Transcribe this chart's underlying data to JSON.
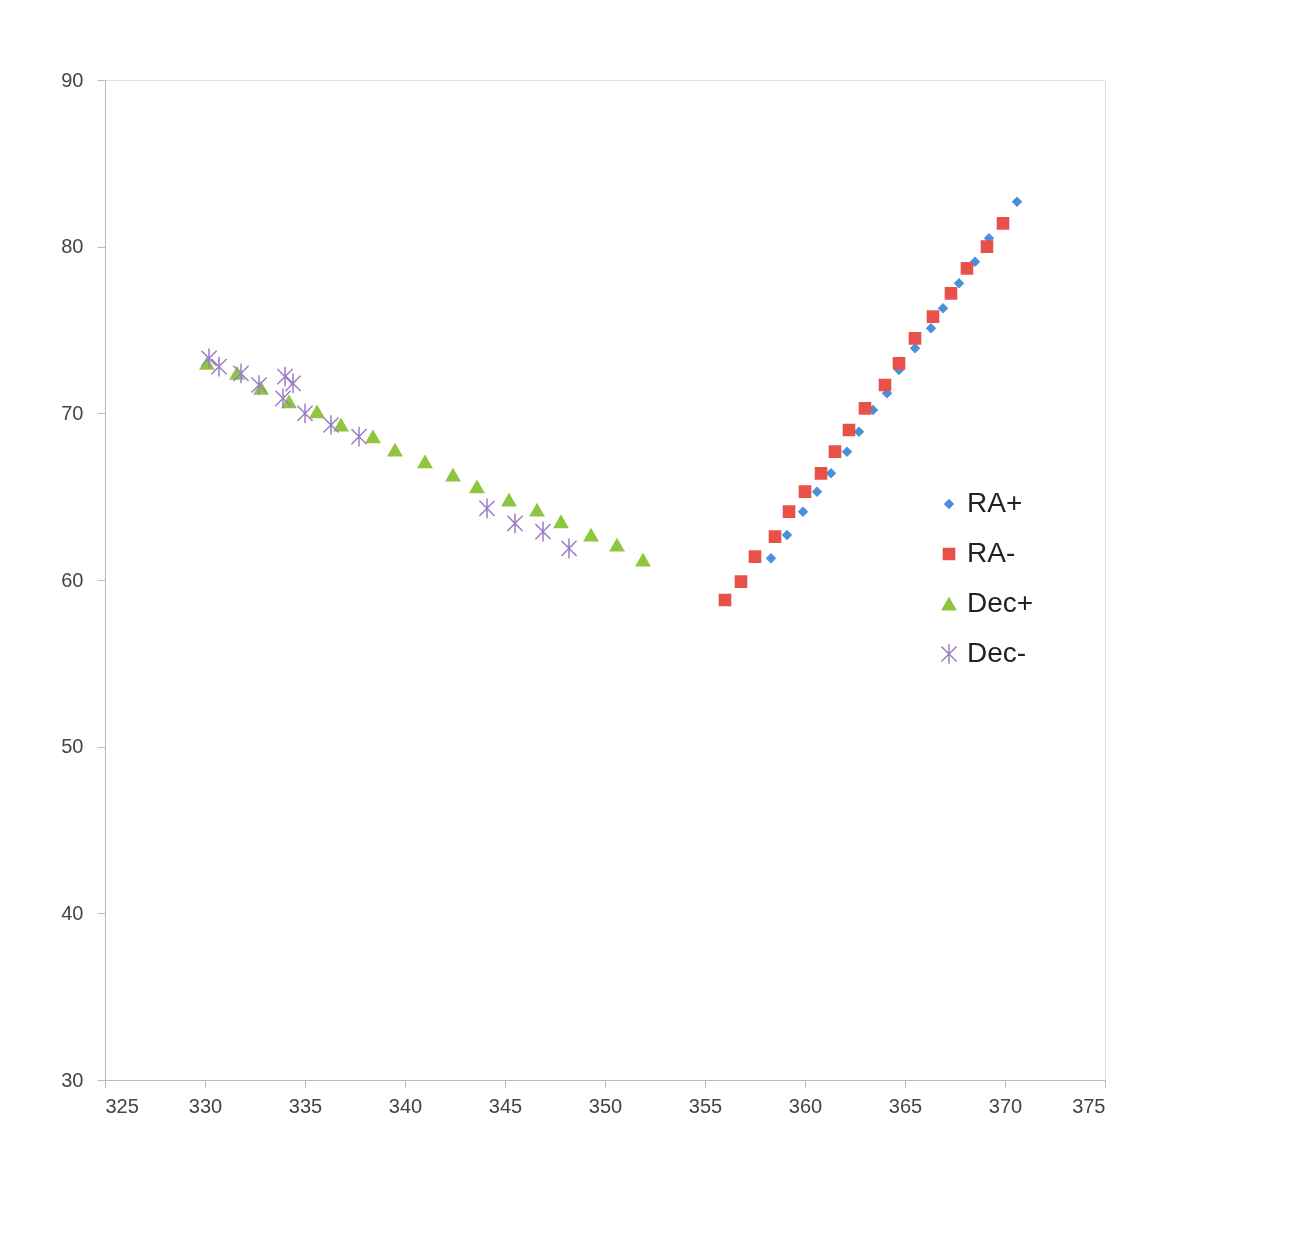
{
  "chart_data": {
    "type": "scatter",
    "xlim": [
      325,
      375
    ],
    "ylim": [
      30,
      90
    ],
    "xticks": [
      325,
      330,
      335,
      340,
      345,
      350,
      355,
      360,
      365,
      370,
      375
    ],
    "yticks": [
      30,
      40,
      50,
      60,
      70,
      80,
      90
    ],
    "grid": false,
    "legend": "right",
    "series": [
      {
        "name": "RA+",
        "color": "#4a90d9",
        "marker": "diamond",
        "x": [
          358.3,
          359.1,
          359.9,
          360.6,
          361.3,
          362.1,
          362.7,
          363.4,
          364.1,
          364.7,
          365.5,
          366.3,
          366.9,
          367.7,
          368.5,
          369.2,
          370.6
        ],
        "values": [
          61.3,
          62.7,
          64.1,
          65.3,
          66.4,
          67.7,
          68.9,
          70.2,
          71.2,
          72.6,
          73.9,
          75.1,
          76.3,
          77.8,
          79.1,
          80.5,
          82.7
        ]
      },
      {
        "name": "RA-",
        "color": "#e8504a",
        "marker": "square",
        "x": [
          356.0,
          356.8,
          357.5,
          358.5,
          359.2,
          360.0,
          360.8,
          361.5,
          362.2,
          363.0,
          364.0,
          364.7,
          365.5,
          366.4,
          367.3,
          368.1,
          369.1,
          369.9
        ],
        "values": [
          58.8,
          59.9,
          61.4,
          62.6,
          64.1,
          65.3,
          66.4,
          67.7,
          69.0,
          70.3,
          71.7,
          73.0,
          74.5,
          75.8,
          77.2,
          78.7,
          80.0,
          81.4
        ]
      },
      {
        "name": "Dec+",
        "color": "#8ec63f",
        "marker": "triangle",
        "x": [
          330.1,
          331.6,
          332.8,
          334.2,
          335.6,
          336.8,
          338.4,
          339.5,
          341.0,
          342.4,
          343.6,
          345.2,
          346.6,
          347.8,
          349.3,
          350.6,
          351.9
        ],
        "values": [
          73.0,
          72.4,
          71.5,
          70.7,
          70.1,
          69.3,
          68.6,
          67.8,
          67.1,
          66.3,
          65.6,
          64.8,
          64.2,
          63.5,
          62.7,
          62.1,
          61.2
        ]
      },
      {
        "name": "Dec-",
        "color": "#9b7fc4",
        "marker": "cross",
        "x": [
          330.2,
          330.7,
          331.8,
          332.7,
          334.0,
          334.4,
          333.9,
          335.0,
          336.3,
          337.7,
          344.1,
          345.5,
          346.9,
          348.2
        ],
        "values": [
          73.3,
          72.8,
          72.4,
          71.7,
          72.2,
          71.8,
          70.9,
          70.0,
          69.3,
          68.6,
          64.3,
          63.4,
          62.9,
          61.9
        ]
      }
    ]
  }
}
